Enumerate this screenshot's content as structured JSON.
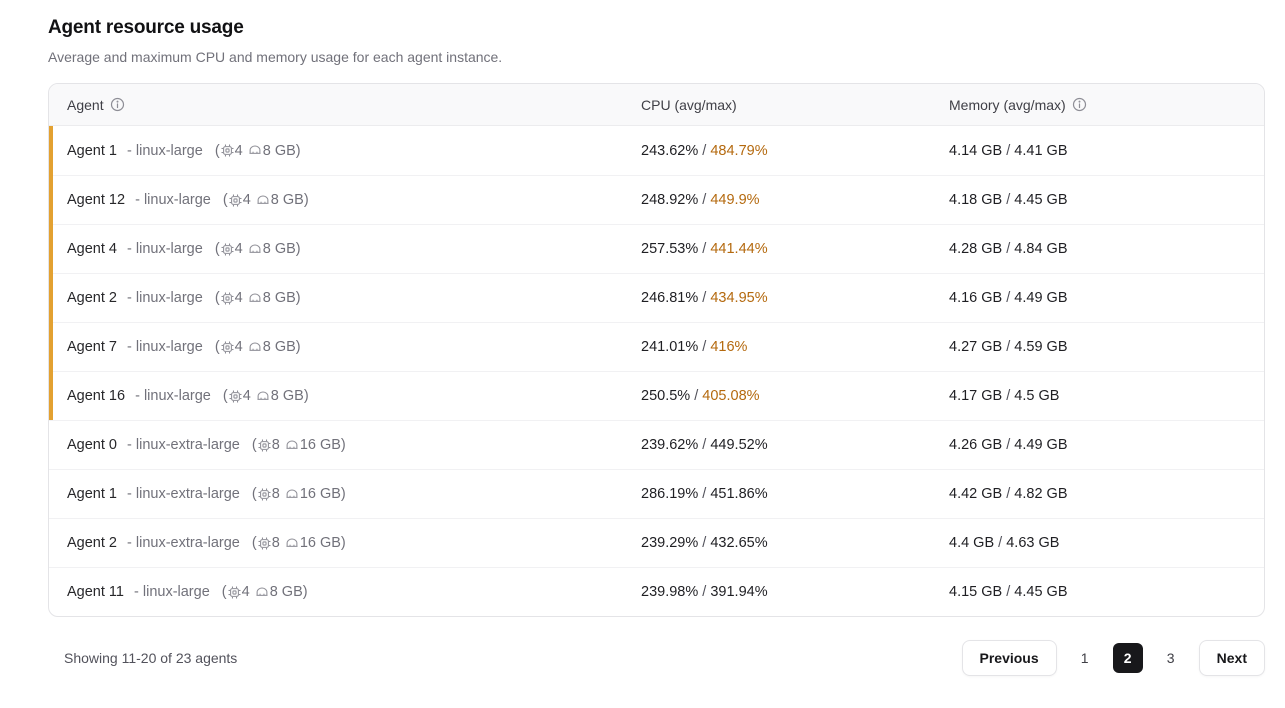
{
  "page": {
    "title": "Agent resource usage",
    "subtitle": "Average and maximum CPU and memory usage for each agent instance."
  },
  "table": {
    "columns": {
      "agent": "Agent",
      "cpu": "CPU (avg/max)",
      "memory": "Memory (avg/max)"
    },
    "rows": [
      {
        "name": "Agent 1",
        "type": "- linux-large",
        "cpus": "4",
        "ram": "8 GB",
        "cpu_avg": "243.62%",
        "cpu_max": "484.79%",
        "mem_avg": "4.14 GB",
        "mem_max": "4.41 GB",
        "warn": true
      },
      {
        "name": "Agent 12",
        "type": "- linux-large",
        "cpus": "4",
        "ram": "8 GB",
        "cpu_avg": "248.92%",
        "cpu_max": "449.9%",
        "mem_avg": "4.18 GB",
        "mem_max": "4.45 GB",
        "warn": true
      },
      {
        "name": "Agent 4",
        "type": "- linux-large",
        "cpus": "4",
        "ram": "8 GB",
        "cpu_avg": "257.53%",
        "cpu_max": "441.44%",
        "mem_avg": "4.28 GB",
        "mem_max": "4.84 GB",
        "warn": true
      },
      {
        "name": "Agent 2",
        "type": "- linux-large",
        "cpus": "4",
        "ram": "8 GB",
        "cpu_avg": "246.81%",
        "cpu_max": "434.95%",
        "mem_avg": "4.16 GB",
        "mem_max": "4.49 GB",
        "warn": true
      },
      {
        "name": "Agent 7",
        "type": "- linux-large",
        "cpus": "4",
        "ram": "8 GB",
        "cpu_avg": "241.01%",
        "cpu_max": "416%",
        "mem_avg": "4.27 GB",
        "mem_max": "4.59 GB",
        "warn": true
      },
      {
        "name": "Agent 16",
        "type": "- linux-large",
        "cpus": "4",
        "ram": "8 GB",
        "cpu_avg": "250.5%",
        "cpu_max": "405.08%",
        "mem_avg": "4.17 GB",
        "mem_max": "4.5 GB",
        "warn": true
      },
      {
        "name": "Agent 0",
        "type": "- linux-extra-large",
        "cpus": "8",
        "ram": "16 GB",
        "cpu_avg": "239.62%",
        "cpu_max": "449.52%",
        "mem_avg": "4.26 GB",
        "mem_max": "4.49 GB",
        "warn": false
      },
      {
        "name": "Agent 1",
        "type": "- linux-extra-large",
        "cpus": "8",
        "ram": "16 GB",
        "cpu_avg": "286.19%",
        "cpu_max": "451.86%",
        "mem_avg": "4.42 GB",
        "mem_max": "4.82 GB",
        "warn": false
      },
      {
        "name": "Agent 2",
        "type": "- linux-extra-large",
        "cpus": "8",
        "ram": "16 GB",
        "cpu_avg": "239.29%",
        "cpu_max": "432.65%",
        "mem_avg": "4.4 GB",
        "mem_max": "4.63 GB",
        "warn": false
      },
      {
        "name": "Agent 11",
        "type": "- linux-large",
        "cpus": "4",
        "ram": "8 GB",
        "cpu_avg": "239.98%",
        "cpu_max": "391.94%",
        "mem_avg": "4.15 GB",
        "mem_max": "4.45 GB",
        "warn": false
      }
    ]
  },
  "footer": {
    "summary": "Showing 11-20 of 23 agents",
    "previous_label": "Previous",
    "next_label": "Next",
    "pages": [
      "1",
      "2",
      "3"
    ],
    "active_page": "2"
  },
  "colors": {
    "warn_bar": "#e3a131",
    "warn_text": "#b4690e"
  }
}
